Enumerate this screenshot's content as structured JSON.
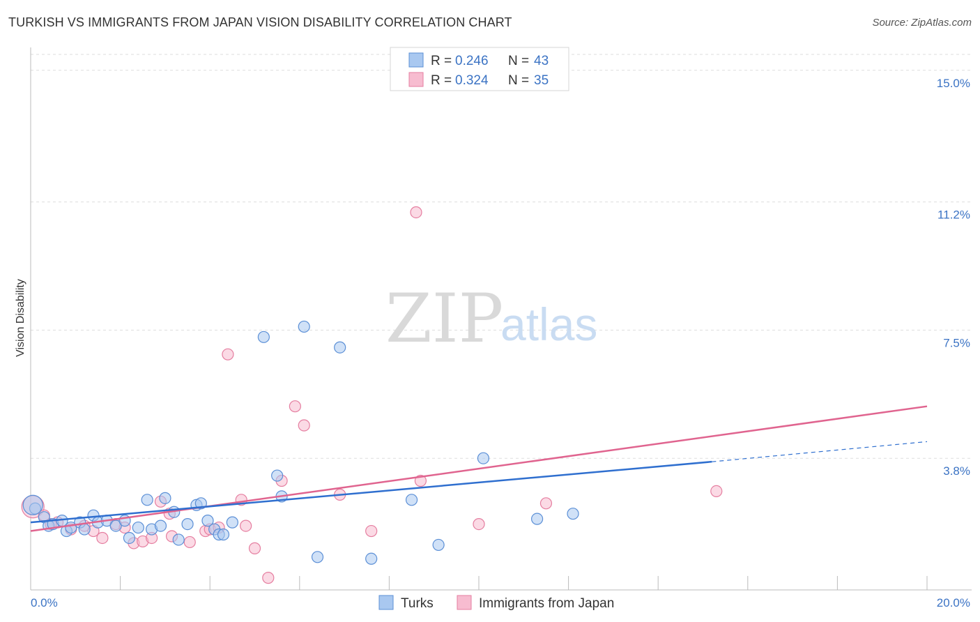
{
  "header": {
    "title": "TURKISH VS IMMIGRANTS FROM JAPAN VISION DISABILITY CORRELATION CHART",
    "source": "Source: ZipAtlas.com"
  },
  "watermark": {
    "zip": "ZIP",
    "atlas": "atlas"
  },
  "colors": {
    "turks_fill": "#a9c8f0",
    "turks_stroke": "#5b8fd6",
    "turks_line": "#2f6fcf",
    "japan_fill": "#f7bcd0",
    "japan_stroke": "#e57ea0",
    "japan_line": "#e0648f",
    "grid": "#dddddd",
    "tick_label": "#3b73c4"
  },
  "legend": {
    "items": [
      {
        "r_label": "R = ",
        "r_value": "0.246",
        "n_label": "N = ",
        "n_value": "43"
      },
      {
        "r_label": "R = ",
        "r_value": "0.324",
        "n_label": "N = ",
        "n_value": "35"
      }
    ]
  },
  "bottom_legend": [
    "Turks",
    "Immigrants from Japan"
  ],
  "chart_data": {
    "type": "scatter",
    "title": "TURKISH VS IMMIGRANTS FROM JAPAN VISION DISABILITY CORRELATION CHART",
    "xlabel": "",
    "ylabel": "Vision Disability",
    "xlim": [
      0,
      20
    ],
    "ylim": [
      0,
      15.7
    ],
    "x_tick_labels": [
      {
        "value": 0,
        "label": "0.0%"
      },
      {
        "value": 20,
        "label": "20.0%"
      }
    ],
    "y_ticks": [
      {
        "value": 3.8,
        "label": "3.8%"
      },
      {
        "value": 7.5,
        "label": "7.5%"
      },
      {
        "value": 11.2,
        "label": "11.2%"
      },
      {
        "value": 15.0,
        "label": "15.0%"
      }
    ],
    "series": [
      {
        "name": "Turks",
        "trend": {
          "x0": 0,
          "y0": 1.95,
          "x1": 15.2,
          "y1": 3.7,
          "dash_x1": 20,
          "dash_y1": 4.28
        },
        "points": [
          [
            0.1,
            2.35
          ],
          [
            0.3,
            2.1
          ],
          [
            0.4,
            1.85
          ],
          [
            0.5,
            1.9
          ],
          [
            0.7,
            2.0
          ],
          [
            0.8,
            1.7
          ],
          [
            0.9,
            1.8
          ],
          [
            1.1,
            1.95
          ],
          [
            1.2,
            1.75
          ],
          [
            1.4,
            2.15
          ],
          [
            1.5,
            1.95
          ],
          [
            1.7,
            2.0
          ],
          [
            1.9,
            1.85
          ],
          [
            2.1,
            2.0
          ],
          [
            2.2,
            1.5
          ],
          [
            2.4,
            1.8
          ],
          [
            2.6,
            2.6
          ],
          [
            2.7,
            1.75
          ],
          [
            2.9,
            1.85
          ],
          [
            3.0,
            2.65
          ],
          [
            3.2,
            2.25
          ],
          [
            3.3,
            1.45
          ],
          [
            3.5,
            1.9
          ],
          [
            3.7,
            2.45
          ],
          [
            3.8,
            2.5
          ],
          [
            3.95,
            2.0
          ],
          [
            4.1,
            1.75
          ],
          [
            4.2,
            1.6
          ],
          [
            4.3,
            1.6
          ],
          [
            4.5,
            1.95
          ],
          [
            5.2,
            7.3
          ],
          [
            5.5,
            3.3
          ],
          [
            5.6,
            2.7
          ],
          [
            6.1,
            7.6
          ],
          [
            6.4,
            0.95
          ],
          [
            6.9,
            7.0
          ],
          [
            7.6,
            0.9
          ],
          [
            8.5,
            2.6
          ],
          [
            9.1,
            1.3
          ],
          [
            10.1,
            3.8
          ],
          [
            11.3,
            2.05
          ],
          [
            12.1,
            2.2
          ],
          [
            0.05,
            2.45
          ]
        ]
      },
      {
        "name": "Immigrants from Japan",
        "trend": {
          "x0": 0,
          "y0": 1.7,
          "x1": 20,
          "y1": 5.3
        },
        "points": [
          [
            0.05,
            2.4
          ],
          [
            0.3,
            2.15
          ],
          [
            0.6,
            1.95
          ],
          [
            0.9,
            1.75
          ],
          [
            1.2,
            1.85
          ],
          [
            1.4,
            1.7
          ],
          [
            1.6,
            1.5
          ],
          [
            1.9,
            1.9
          ],
          [
            2.1,
            1.8
          ],
          [
            2.3,
            1.35
          ],
          [
            2.5,
            1.4
          ],
          [
            2.7,
            1.5
          ],
          [
            2.9,
            2.55
          ],
          [
            3.1,
            2.2
          ],
          [
            3.15,
            1.55
          ],
          [
            3.55,
            1.38
          ],
          [
            3.9,
            1.7
          ],
          [
            4.0,
            1.75
          ],
          [
            4.2,
            1.8
          ],
          [
            4.4,
            6.8
          ],
          [
            4.7,
            2.6
          ],
          [
            4.8,
            1.85
          ],
          [
            5.0,
            1.2
          ],
          [
            5.3,
            0.35
          ],
          [
            5.6,
            3.15
          ],
          [
            5.9,
            5.3
          ],
          [
            6.1,
            4.75
          ],
          [
            6.9,
            2.75
          ],
          [
            7.6,
            1.7
          ],
          [
            8.7,
            3.15
          ],
          [
            8.6,
            10.9
          ],
          [
            10.0,
            1.9
          ],
          [
            11.5,
            2.5
          ],
          [
            15.3,
            2.85
          ],
          [
            0.45,
            1.9
          ]
        ]
      }
    ]
  }
}
